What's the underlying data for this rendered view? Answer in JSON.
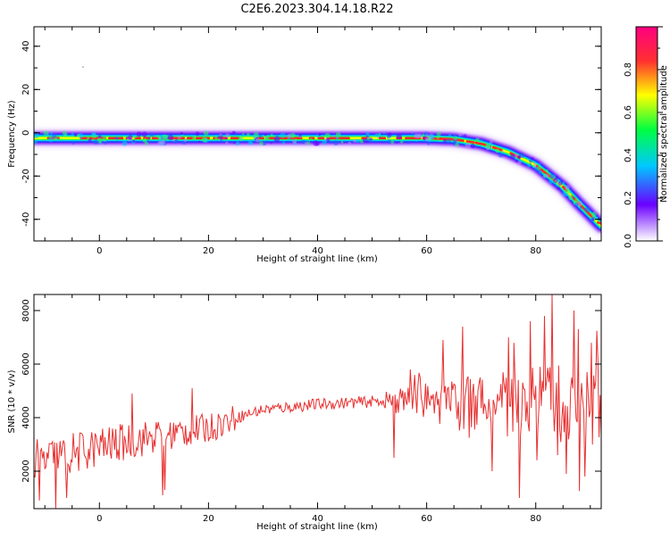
{
  "title": "C2E6.2023.304.14.18.R22",
  "chart_data": [
    {
      "type": "heatmap",
      "xlabel": "Height of straight line (km)",
      "ylabel": "Frequency (Hz)",
      "xlim": [
        -12,
        92
      ],
      "ylim": [
        -50,
        49
      ],
      "x_ticks": [
        "0",
        "20",
        "40",
        "60",
        "80"
      ],
      "y_ticks": [
        "40",
        "20",
        "0",
        "-20",
        "-40"
      ],
      "colorbar": {
        "label": "Normalized spectral amplitude",
        "range": [
          0,
          1
        ],
        "ticks": [
          "0.0",
          "0.2",
          "0.4",
          "0.6",
          "0.8"
        ],
        "colors": [
          "#ffffff",
          "#6a00ff",
          "#00c8ff",
          "#00ff40",
          "#ffff00",
          "#ff3030",
          "#ff0080"
        ]
      },
      "trace": {
        "x": [
          -12,
          0,
          10,
          20,
          30,
          40,
          50,
          60,
          65,
          70,
          75,
          80,
          85,
          88,
          90,
          92
        ],
        "y": [
          -2.5,
          -2.5,
          -2.5,
          -2.5,
          -2.5,
          -2.5,
          -2.5,
          -2.5,
          -3,
          -5,
          -9,
          -15,
          -25,
          -33,
          -38,
          -43
        ]
      }
    },
    {
      "type": "line",
      "xlabel": "Height of straight line (km)",
      "ylabel": "SNR (10 * v/v)",
      "xlim": [
        -12,
        92
      ],
      "ylim": [
        600,
        8600
      ],
      "x_ticks": [
        "0",
        "20",
        "40",
        "60",
        "80"
      ],
      "y_ticks": [
        "2000",
        "4000",
        "6000",
        "8000"
      ],
      "color": "#e83030",
      "baseline": {
        "x": [
          -12,
          0,
          10,
          20,
          25,
          30,
          40,
          50,
          55,
          60,
          70,
          80,
          85,
          92
        ],
        "y": [
          2300,
          2900,
          3300,
          3600,
          4000,
          4300,
          4500,
          4600,
          4700,
          4700,
          4600,
          4500,
          4400,
          4300
        ]
      },
      "spikes": {
        "x": [
          -11,
          -8,
          -6,
          6,
          11.5,
          12,
          17,
          54,
          57,
          63,
          66.5,
          72,
          75,
          77,
          79,
          81.5,
          83,
          84,
          87,
          89
        ],
        "y": [
          900,
          600,
          1000,
          4900,
          1100,
          1300,
          5100,
          2500,
          5800,
          6900,
          7400,
          2000,
          7000,
          1000,
          7600,
          7800,
          8600,
          2600,
          8000,
          1800
        ]
      }
    }
  ]
}
